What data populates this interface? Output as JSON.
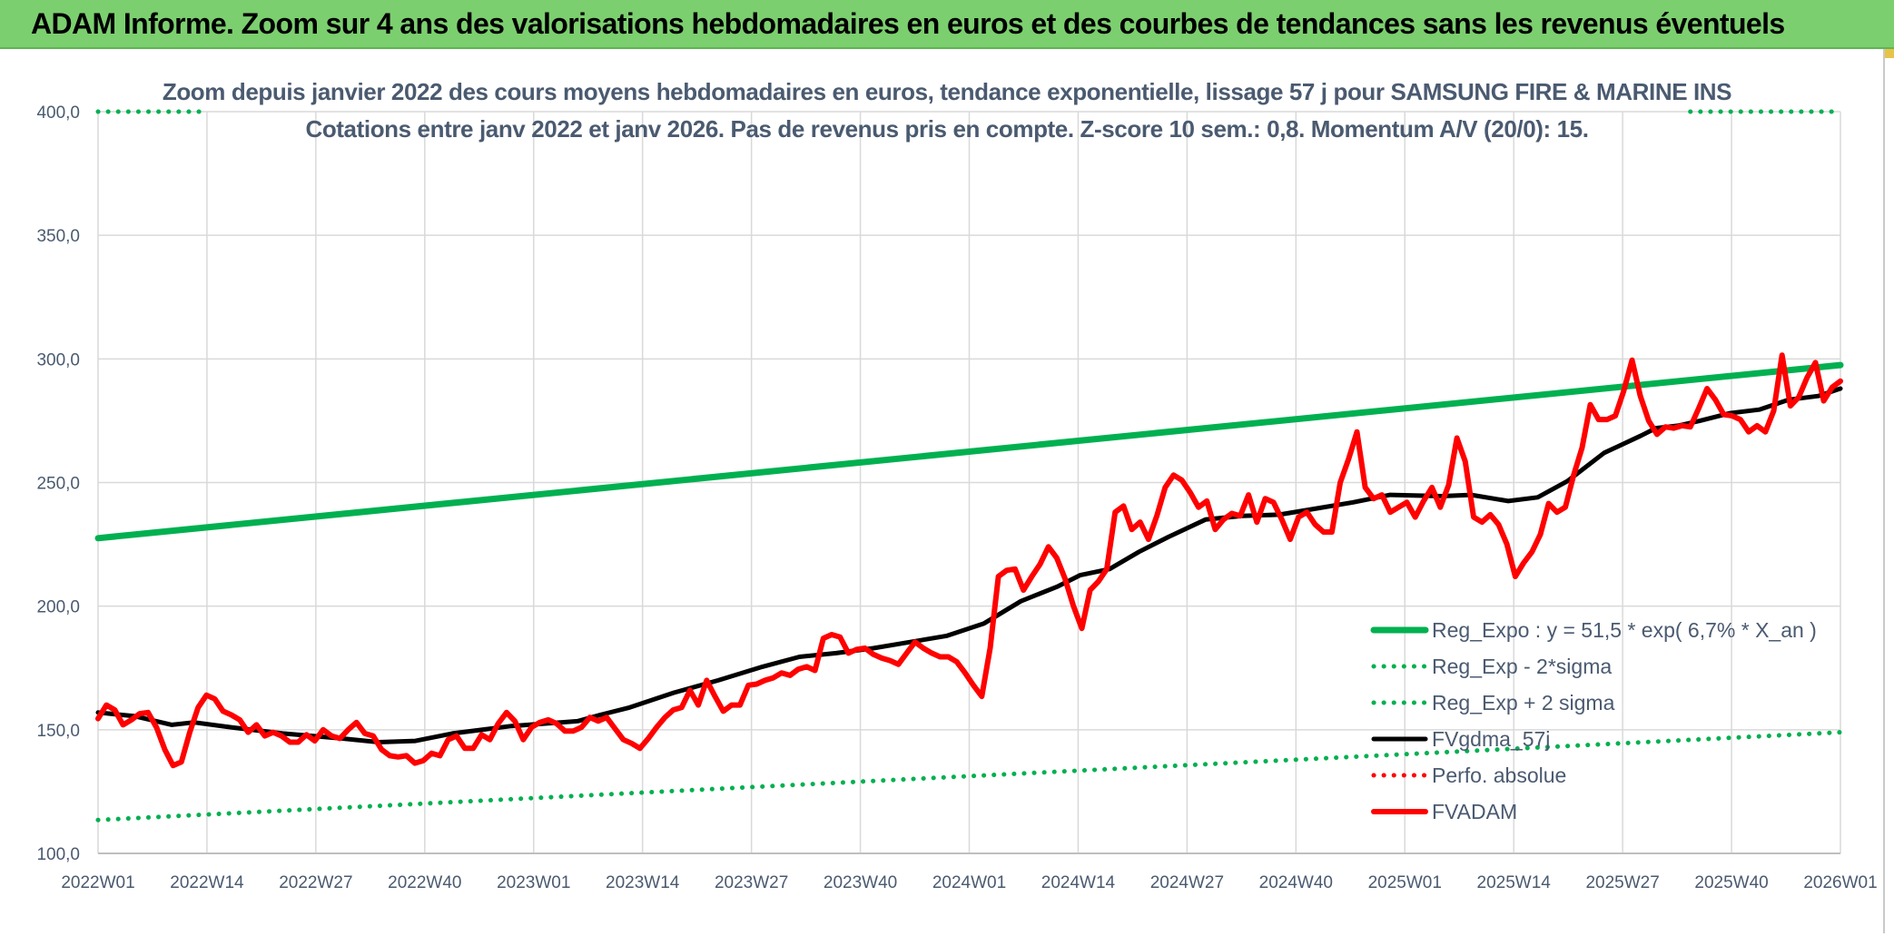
{
  "banner": {
    "title": "ADAM Informe. Zoom sur 4 ans des valorisations hebdomadaires en euros et des courbes de tendances sans les revenus éventuels"
  },
  "colors": {
    "banner_bg": "#7ccf6f",
    "reg_expo": "#00b050",
    "moving_avg": "#000000",
    "fvadam": "#ff0000",
    "text": "#4a5a70",
    "grid": "#d9d9d9"
  },
  "chart_data": {
    "type": "line",
    "title": "Zoom depuis janvier 2022 des cours moyens hebdomadaires en euros, tendance exponentielle, lissage 57 j pour SAMSUNG FIRE & MARINE INS",
    "subtitle": "Cotations entre janv 2022 et janv 2026. Pas de revenus pris en compte. Z-score 10 sem.: 0,8. Momentum A/V (20/0): 15.",
    "xlabel": "",
    "ylabel": "",
    "ylim": [
      100,
      400
    ],
    "yticks": [
      "100,0",
      "150,0",
      "200,0",
      "250,0",
      "300,0",
      "350,0",
      "400,0"
    ],
    "xticks": [
      "2022W01",
      "2022W14",
      "2022W27",
      "2022W40",
      "2023W01",
      "2023W14",
      "2023W27",
      "2023W40",
      "2024W01",
      "2024W14",
      "2024W27",
      "2024W40",
      "2025W01",
      "2025W14",
      "2025W27",
      "2025W40",
      "2026W01"
    ],
    "weeks_total": 210,
    "grid": true,
    "legend_position": "bottom-right",
    "series": [
      {
        "name": "Reg_Expo : y = 51,5 * exp( 6,7% *  X_an )",
        "style": "solid-thick",
        "color": "#00b050",
        "points": [
          [
            0,
            227.5
          ],
          [
            209,
            297.5
          ]
        ]
      },
      {
        "name": "Reg_Exp - 2*sigma",
        "style": "dotted",
        "color": "#00b050",
        "points": [
          [
            0,
            113.5
          ],
          [
            209,
            149
          ]
        ]
      },
      {
        "name": "Reg_Exp + 2 sigma",
        "style": "dotted",
        "color": "#00b050",
        "segments": [
          [
            [
              0,
              400
            ],
            [
              13,
              400
            ]
          ],
          [
            [
              191,
              400
            ],
            [
              209,
              400
            ]
          ]
        ]
      },
      {
        "name": "FVgdma_57j",
        "style": "solid",
        "color": "#000000",
        "points": [
          [
            0,
            157
          ],
          [
            5,
            155.5
          ],
          [
            10,
            152
          ],
          [
            13,
            153
          ],
          [
            18,
            151
          ],
          [
            25,
            148.5
          ],
          [
            33,
            146.5
          ],
          [
            38,
            145
          ],
          [
            43,
            145.5
          ],
          [
            48,
            148.5
          ],
          [
            56,
            151.5
          ],
          [
            65,
            153.5
          ],
          [
            68,
            156
          ],
          [
            72,
            159
          ],
          [
            78,
            165
          ],
          [
            84,
            170
          ],
          [
            90,
            175.5
          ],
          [
            95,
            179.5
          ],
          [
            100,
            181
          ],
          [
            105,
            183
          ],
          [
            110,
            185.5
          ],
          [
            115,
            188
          ],
          [
            120,
            193
          ],
          [
            125,
            202
          ],
          [
            130,
            208
          ],
          [
            133,
            212.5
          ],
          [
            137,
            215
          ],
          [
            141,
            222
          ],
          [
            145,
            228
          ],
          [
            150,
            235
          ],
          [
            155,
            236.5
          ],
          [
            160,
            237
          ],
          [
            165,
            239.5
          ],
          [
            170,
            242
          ],
          [
            175,
            245
          ],
          [
            182,
            244.5
          ],
          [
            186,
            245
          ],
          [
            191,
            242.5
          ],
          [
            195,
            244
          ],
          [
            199,
            250.5
          ],
          [
            204,
            262
          ],
          [
            209,
            269
          ],
          [
            211,
            272
          ],
          [
            214,
            273
          ],
          [
            217,
            275
          ],
          [
            221,
            278
          ],
          [
            225,
            279.5
          ],
          [
            229,
            283.5
          ],
          [
            233,
            285
          ],
          [
            236,
            288
          ]
        ]
      },
      {
        "name": "Perfo. absolue",
        "style": "dotted",
        "color": "#ff0000",
        "points": []
      },
      {
        "name": "FVADAM",
        "style": "solid-thick",
        "color": "#ff0000",
        "points": [
          [
            0,
            154.5
          ],
          [
            1,
            160
          ],
          [
            2,
            158
          ],
          [
            3,
            152
          ],
          [
            4,
            154
          ],
          [
            5,
            156.5
          ],
          [
            6,
            157
          ],
          [
            7,
            151
          ],
          [
            8,
            142
          ],
          [
            9,
            135.5
          ],
          [
            10,
            137
          ],
          [
            11,
            149
          ],
          [
            12,
            159
          ],
          [
            13,
            164
          ],
          [
            14,
            162.5
          ],
          [
            15,
            157.5
          ],
          [
            16,
            156
          ],
          [
            17,
            154
          ],
          [
            18,
            149
          ],
          [
            19,
            152
          ],
          [
            20,
            147.5
          ],
          [
            21,
            149
          ],
          [
            22,
            147.5
          ],
          [
            23,
            145
          ],
          [
            24,
            145
          ],
          [
            25,
            148
          ],
          [
            26,
            145.5
          ],
          [
            27,
            150
          ],
          [
            28,
            147.5
          ],
          [
            29,
            146.5
          ],
          [
            30,
            150
          ],
          [
            31,
            153
          ],
          [
            32,
            148.5
          ],
          [
            33,
            147.5
          ],
          [
            34,
            142
          ],
          [
            35,
            139.5
          ],
          [
            36,
            139
          ],
          [
            37,
            139.5
          ],
          [
            38,
            136.5
          ],
          [
            39,
            137.5
          ],
          [
            40,
            140.5
          ],
          [
            41,
            139.5
          ],
          [
            42,
            146
          ],
          [
            43,
            147.5
          ],
          [
            44,
            142.5
          ],
          [
            45,
            142.5
          ],
          [
            46,
            148
          ],
          [
            47,
            146
          ],
          [
            48,
            152.5
          ],
          [
            49,
            157
          ],
          [
            50,
            153.5
          ],
          [
            51,
            146
          ],
          [
            52,
            151
          ],
          [
            53,
            153
          ],
          [
            54,
            154
          ],
          [
            55,
            152.5
          ],
          [
            56,
            149.5
          ],
          [
            57,
            149.5
          ],
          [
            58,
            151
          ],
          [
            59,
            155
          ],
          [
            60,
            153.5
          ],
          [
            61,
            155
          ],
          [
            62,
            150.5
          ],
          [
            63,
            146
          ],
          [
            64,
            144.5
          ],
          [
            65,
            142.5
          ],
          [
            66,
            146.5
          ],
          [
            67,
            151
          ],
          [
            68,
            155
          ],
          [
            69,
            158
          ],
          [
            70,
            159
          ],
          [
            71,
            166
          ],
          [
            72,
            160
          ],
          [
            73,
            170
          ],
          [
            74,
            163.5
          ],
          [
            75,
            157.5
          ],
          [
            76,
            160
          ],
          [
            77,
            160
          ],
          [
            78,
            168
          ],
          [
            79,
            168.5
          ],
          [
            80,
            170
          ],
          [
            81,
            171
          ],
          [
            82,
            173
          ],
          [
            83,
            172
          ],
          [
            84,
            174.5
          ],
          [
            85,
            175.5
          ],
          [
            86,
            174
          ],
          [
            87,
            187
          ],
          [
            88,
            188.5
          ],
          [
            89,
            187.5
          ],
          [
            90,
            181
          ],
          [
            91,
            182.5
          ],
          [
            92,
            183
          ],
          [
            93,
            180.5
          ],
          [
            94,
            179
          ],
          [
            95,
            178
          ],
          [
            96,
            176.5
          ],
          [
            97,
            181
          ],
          [
            98,
            185.5
          ],
          [
            99,
            183
          ],
          [
            100,
            181
          ],
          [
            101,
            179.5
          ],
          [
            102,
            179.5
          ],
          [
            103,
            177.5
          ],
          [
            104,
            173
          ],
          [
            105,
            168
          ],
          [
            106,
            163.5
          ],
          [
            107,
            183
          ],
          [
            108,
            212
          ],
          [
            109,
            214.5
          ],
          [
            110,
            215
          ],
          [
            111,
            206.5
          ],
          [
            112,
            212
          ],
          [
            113,
            217
          ],
          [
            114,
            224
          ],
          [
            115,
            219.5
          ],
          [
            116,
            211
          ],
          [
            117,
            200
          ],
          [
            118,
            191
          ],
          [
            119,
            206.5
          ],
          [
            120,
            210
          ],
          [
            121,
            215
          ],
          [
            122,
            238
          ],
          [
            123,
            240.5
          ],
          [
            124,
            231
          ],
          [
            125,
            234
          ],
          [
            126,
            227
          ],
          [
            127,
            236.5
          ],
          [
            128,
            248
          ],
          [
            129,
            253
          ],
          [
            130,
            251
          ],
          [
            131,
            246
          ],
          [
            132,
            240
          ],
          [
            133,
            242.5
          ],
          [
            134,
            231
          ],
          [
            135,
            235
          ],
          [
            136,
            237.5
          ],
          [
            137,
            236.5
          ],
          [
            138,
            245
          ],
          [
            139,
            234
          ],
          [
            140,
            243.5
          ],
          [
            141,
            242
          ],
          [
            142,
            235
          ],
          [
            143,
            227
          ],
          [
            144,
            236
          ],
          [
            145,
            238
          ],
          [
            146,
            233
          ],
          [
            147,
            230
          ],
          [
            148,
            230
          ],
          [
            149,
            250
          ],
          [
            150,
            259.5
          ],
          [
            151,
            270.5
          ],
          [
            152,
            248
          ],
          [
            153,
            243.5
          ],
          [
            154,
            245
          ],
          [
            155,
            238
          ],
          [
            156,
            240
          ],
          [
            157,
            242
          ],
          [
            158,
            236
          ],
          [
            159,
            242.5
          ],
          [
            160,
            248
          ],
          [
            161,
            240
          ],
          [
            162,
            249
          ],
          [
            163,
            268
          ],
          [
            164,
            258.5
          ],
          [
            165,
            236
          ],
          [
            166,
            234
          ],
          [
            167,
            237
          ],
          [
            168,
            233
          ],
          [
            169,
            225
          ],
          [
            170,
            212
          ],
          [
            171,
            217.5
          ],
          [
            172,
            222
          ],
          [
            173,
            229
          ],
          [
            174,
            241.5
          ],
          [
            175,
            238
          ],
          [
            176,
            240
          ],
          [
            177,
            253
          ],
          [
            178,
            264
          ],
          [
            179,
            281.5
          ],
          [
            180,
            275.5
          ],
          [
            181,
            275.5
          ],
          [
            182,
            277
          ],
          [
            183,
            287
          ],
          [
            184,
            299.5
          ],
          [
            185,
            285
          ],
          [
            186,
            275
          ],
          [
            187,
            269.5
          ],
          [
            188,
            272.5
          ],
          [
            189,
            272
          ],
          [
            190,
            273
          ],
          [
            191,
            272.5
          ],
          [
            192,
            280
          ],
          [
            193,
            288
          ],
          [
            194,
            283.5
          ],
          [
            195,
            277.5
          ],
          [
            196,
            277
          ],
          [
            197,
            275.5
          ],
          [
            198,
            270.5
          ],
          [
            199,
            273
          ],
          [
            200,
            270.5
          ],
          [
            201,
            279
          ],
          [
            202,
            301.5
          ],
          [
            203,
            281
          ],
          [
            204,
            284.5
          ],
          [
            205,
            292.5
          ],
          [
            206,
            298.5
          ],
          [
            207,
            283
          ],
          [
            208,
            288.5
          ],
          [
            209,
            291
          ]
        ]
      }
    ]
  }
}
